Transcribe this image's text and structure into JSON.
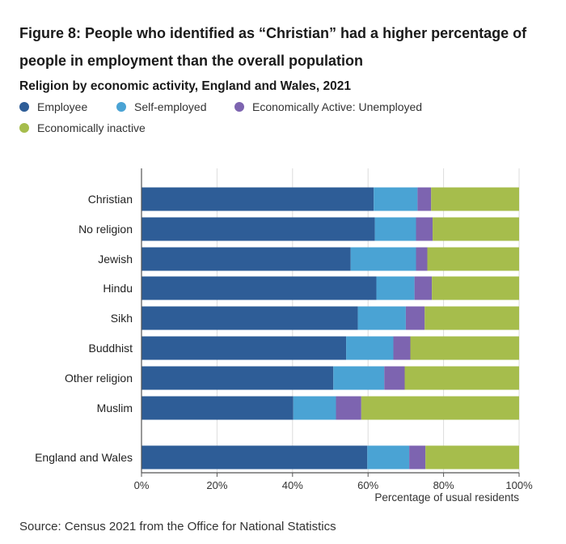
{
  "figure": {
    "title": "Figure 8: People who identified as “Christian” had a higher percentage of people in employment than the overall population",
    "source": "Source: Census 2021 from the Office for National Statistics"
  },
  "chart_data": {
    "type": "bar",
    "orientation": "horizontal",
    "stacked": true,
    "title": "Religion by economic activity, England and Wales, 2021",
    "xlabel": "Percentage of usual residents",
    "ylabel": "",
    "xlim": [
      0,
      100
    ],
    "x_ticks": [
      "0%",
      "20%",
      "40%",
      "60%",
      "80%",
      "100%"
    ],
    "legend_position": "top-left",
    "grid": true,
    "categories": [
      "Christian",
      "No religion",
      "Jewish",
      "Hindu",
      "Sikh",
      "Buddhist",
      "Other religion",
      "Muslim",
      "England and Wales"
    ],
    "series": [
      {
        "name": "Employee",
        "color": "#2e5d97",
        "values": [
          61.5,
          61.8,
          55.4,
          62.2,
          57.3,
          54.2,
          50.8,
          40.2,
          59.8
        ]
      },
      {
        "name": "Self-employed",
        "color": "#4aa3d4",
        "values": [
          11.6,
          10.9,
          17.3,
          10.1,
          12.7,
          12.5,
          13.5,
          11.3,
          11.1
        ]
      },
      {
        "name": "Economically Active: Unemployed",
        "color": "#7d64b0",
        "values": [
          3.6,
          4.4,
          3.0,
          4.6,
          5.0,
          4.5,
          5.4,
          6.7,
          4.3
        ]
      },
      {
        "name": "Economically inactive",
        "color": "#a6bd4c",
        "values": [
          23.3,
          22.9,
          24.3,
          23.1,
          25.0,
          28.8,
          30.3,
          41.8,
          24.8
        ]
      }
    ]
  }
}
